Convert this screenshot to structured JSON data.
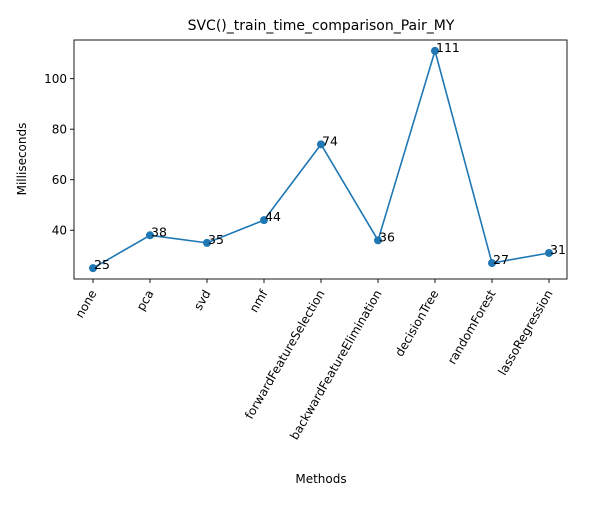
{
  "chart_data": {
    "type": "line",
    "title": "SVC()_train_time_comparison_Pair_MY",
    "xlabel": "Methods",
    "ylabel": "Milliseconds",
    "categories": [
      "none",
      "pca",
      "svd",
      "nmf",
      "forwardFeatureSelection",
      "backwardFeatureElimination",
      "decisionTree",
      "randomForest",
      "lassoRegression"
    ],
    "values": [
      25,
      38,
      35,
      44,
      74,
      36,
      111,
      27,
      31
    ],
    "data_labels": [
      "25",
      "38",
      "35",
      "44",
      "74",
      "36",
      "111",
      "27",
      "31"
    ],
    "yticks": [
      40,
      60,
      80,
      100
    ],
    "ylim": [
      20.7,
      115.3
    ],
    "grid": false,
    "legend": "none",
    "series_color": "#1f77b4"
  }
}
